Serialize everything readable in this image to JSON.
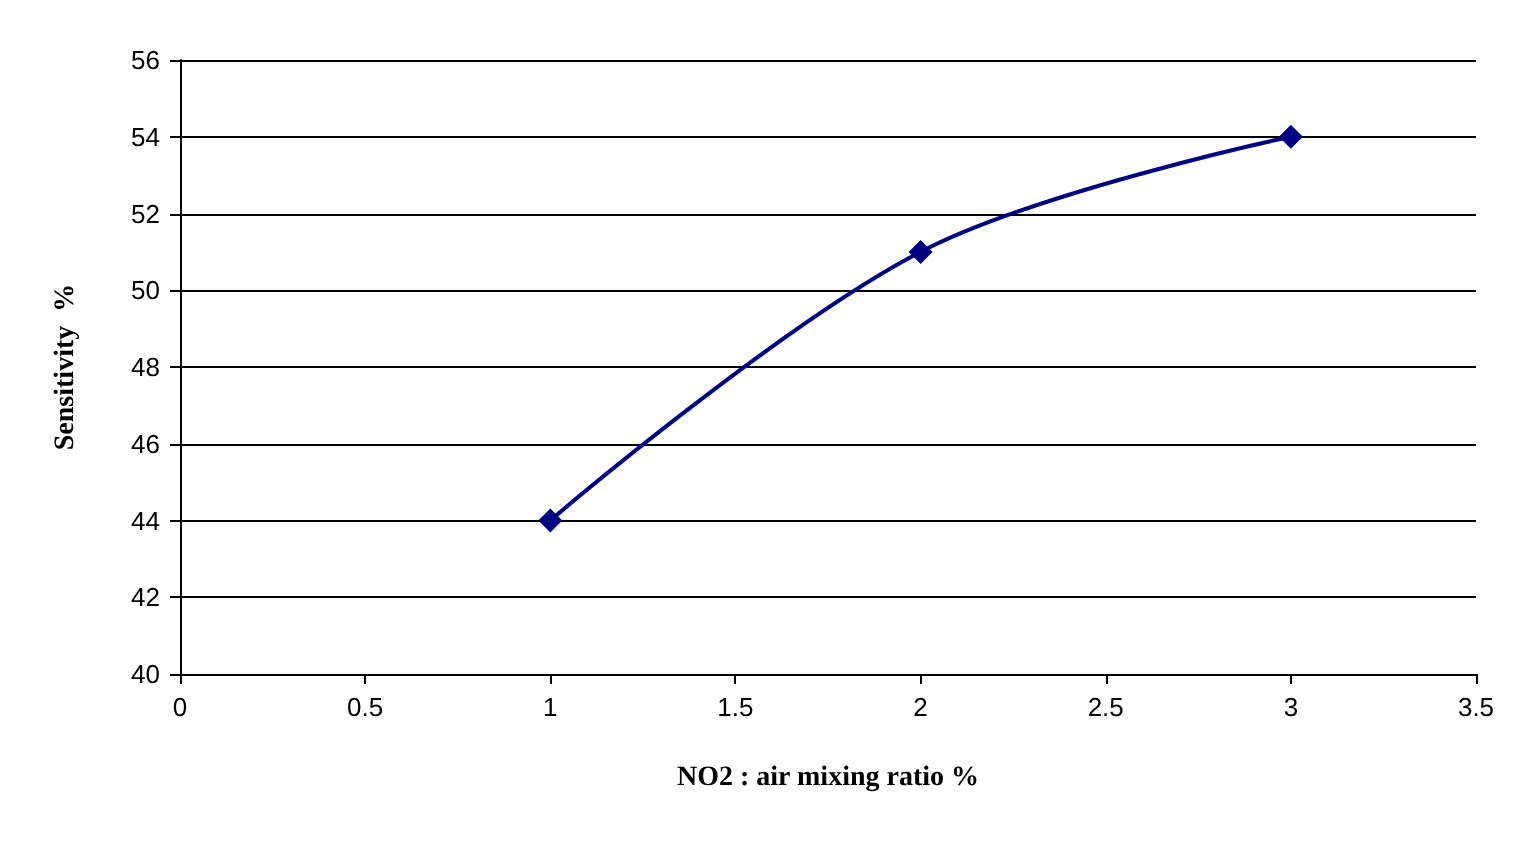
{
  "chart_data": {
    "type": "line",
    "xlabel": "NO2 : air mixing ratio %",
    "ylabel": "Sensitivity  %",
    "x": [
      1,
      2,
      3
    ],
    "series": [
      {
        "color": "#000080",
        "values": [
          44,
          51,
          54
        ]
      }
    ],
    "xlim": [
      0,
      3.5
    ],
    "xticks": [
      0,
      0.5,
      1,
      1.5,
      2,
      2.5,
      3,
      3.5
    ],
    "ylim": [
      40,
      56
    ],
    "yticks": [
      40,
      42,
      44,
      46,
      48,
      50,
      52,
      54,
      56
    ],
    "grid": "y",
    "marker": "diamond",
    "line_style": "solid"
  }
}
